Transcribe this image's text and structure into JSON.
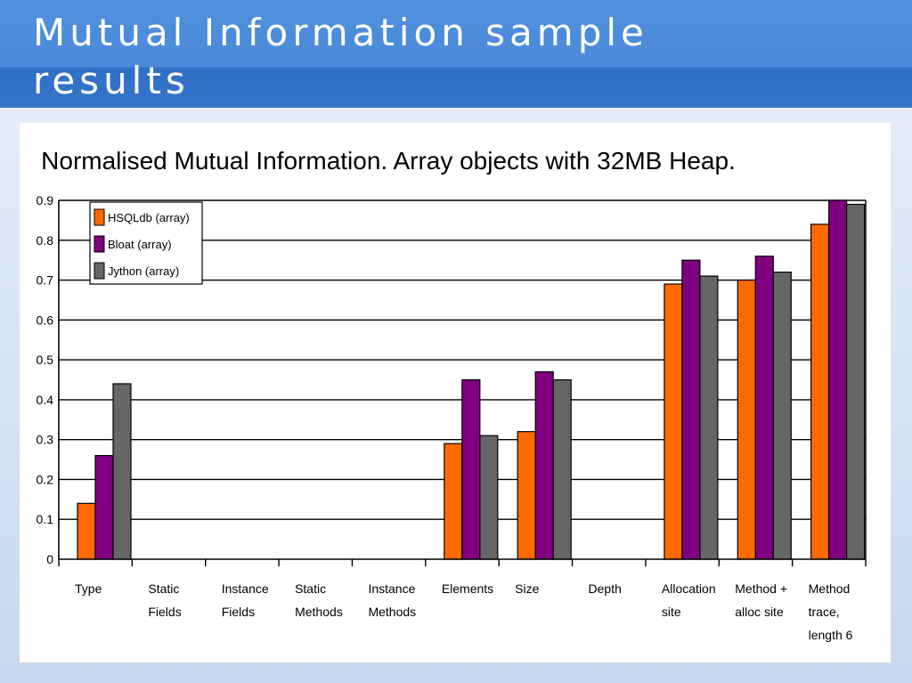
{
  "slide": {
    "title": "Mutual Information sample results"
  },
  "chart_data": {
    "type": "bar",
    "title": "Normalised Mutual Information. Array objects with 32MB Heap.",
    "xlabel": "",
    "ylabel": "",
    "ylim": [
      0,
      0.9
    ],
    "yticks": [
      "0",
      "0.1",
      "0.2",
      "0.3",
      "0.4",
      "0.5",
      "0.6",
      "0.7",
      "0.8",
      "0.9"
    ],
    "grid": true,
    "legend_position": "top-left",
    "categories": [
      [
        "Type"
      ],
      [
        "Static",
        "Fields"
      ],
      [
        "Instance",
        "Fields"
      ],
      [
        "Static",
        "Methods"
      ],
      [
        "Instance",
        "Methods"
      ],
      [
        "Elements"
      ],
      [
        "Size"
      ],
      [
        "Depth"
      ],
      [
        "Allocation",
        "site"
      ],
      [
        "Method +",
        "alloc site"
      ],
      [
        "Method",
        "trace,",
        "length 6"
      ]
    ],
    "series": [
      {
        "name": "HSQLdb (array)",
        "color": "#ff6a00",
        "values": [
          0.14,
          0,
          0,
          0,
          0,
          0.29,
          0.32,
          0,
          0.69,
          0.7,
          0.84
        ]
      },
      {
        "name": "Bloat (array)",
        "color": "#800080",
        "values": [
          0.26,
          0,
          0,
          0,
          0,
          0.45,
          0.47,
          0,
          0.75,
          0.76,
          0.9
        ]
      },
      {
        "name": "Jython (array)",
        "color": "#666666",
        "values": [
          0.44,
          0,
          0,
          0,
          0,
          0.31,
          0.45,
          0,
          0.71,
          0.72,
          0.89
        ]
      }
    ]
  }
}
